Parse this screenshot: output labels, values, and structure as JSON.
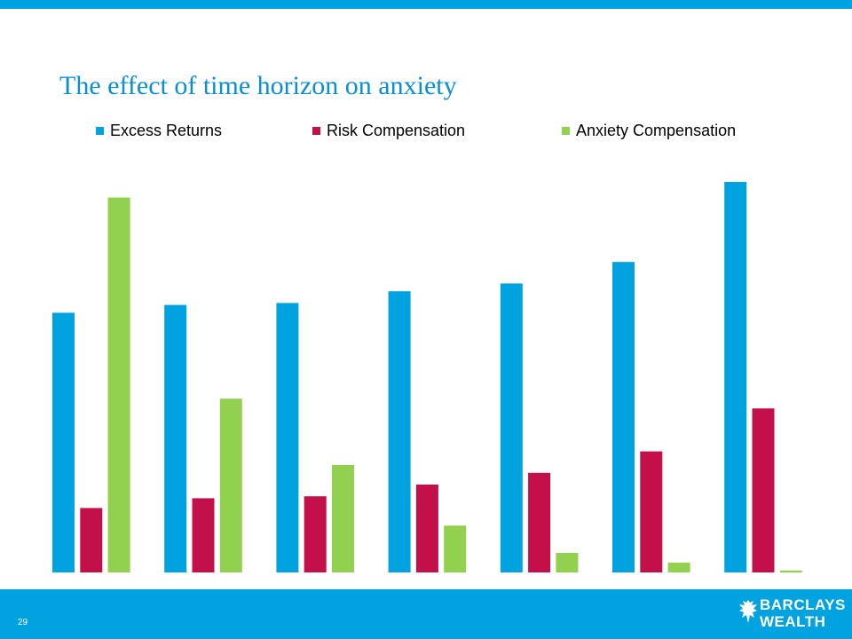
{
  "slide": {
    "title": "The effect of time horizon on anxiety",
    "page_number": "29"
  },
  "brand": {
    "name_line1": "BARCLAYS",
    "name_line2": "WEALTH",
    "logo_icon": "eagle-icon",
    "accent_color": "#00a3e0"
  },
  "chart_data": {
    "type": "bar",
    "title": "",
    "xlabel": "",
    "ylabel": "",
    "categories": [
      "",
      "",
      "",
      "",
      "",
      "",
      ""
    ],
    "ylim": [
      0,
      100
    ],
    "grid": false,
    "legend_position": "top",
    "series": [
      {
        "name": "Excess Returns",
        "color": "#00a3e0",
        "values": [
          66.5,
          68.5,
          69,
          72,
          74,
          79.5,
          100
        ]
      },
      {
        "name": "Risk Compensation",
        "color": "#c4104a",
        "values": [
          16.5,
          19,
          19.5,
          22.5,
          25.5,
          31,
          42
        ]
      },
      {
        "name": "Anxiety Compensation",
        "color": "#92d050",
        "values": [
          96,
          44.5,
          27.5,
          12,
          5,
          2.5,
          0.5
        ]
      }
    ]
  }
}
